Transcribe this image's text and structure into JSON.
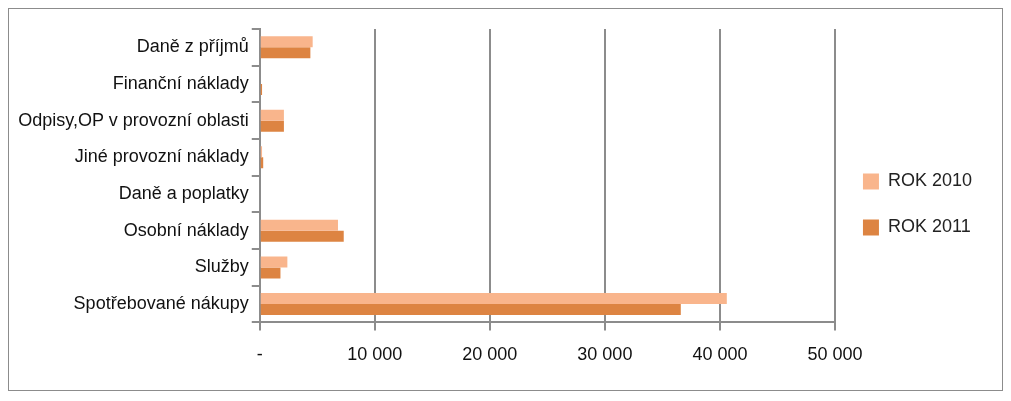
{
  "chart_data": {
    "type": "bar",
    "orientation": "horizontal",
    "categories": [
      "Daně z příjmů",
      "Finanční náklady",
      "Odpisy,OP v provozní oblasti",
      "Jiné provozní náklady",
      "Daně a poplatky",
      "Osobní náklady",
      "Služby",
      "Spotřebované nákupy"
    ],
    "series": [
      {
        "name": "ROK 2010",
        "color": "#f9b58c",
        "values": [
          4600,
          null,
          2100,
          200,
          null,
          6800,
          2400,
          40600
        ]
      },
      {
        "name": "ROK 2011",
        "color": "#dd8442",
        "values": [
          4400,
          200,
          2100,
          300,
          null,
          7300,
          1800,
          36600
        ]
      }
    ],
    "xlim": [
      0,
      50000
    ],
    "xticks": [
      {
        "value": 0,
        "label": "-"
      },
      {
        "value": 10000,
        "label": "10 000"
      },
      {
        "value": 20000,
        "label": "20 000"
      },
      {
        "value": 30000,
        "label": "30 000"
      },
      {
        "value": 40000,
        "label": "40 000"
      },
      {
        "value": 50000,
        "label": "50 000"
      }
    ],
    "grid": "x",
    "legend": "right"
  }
}
